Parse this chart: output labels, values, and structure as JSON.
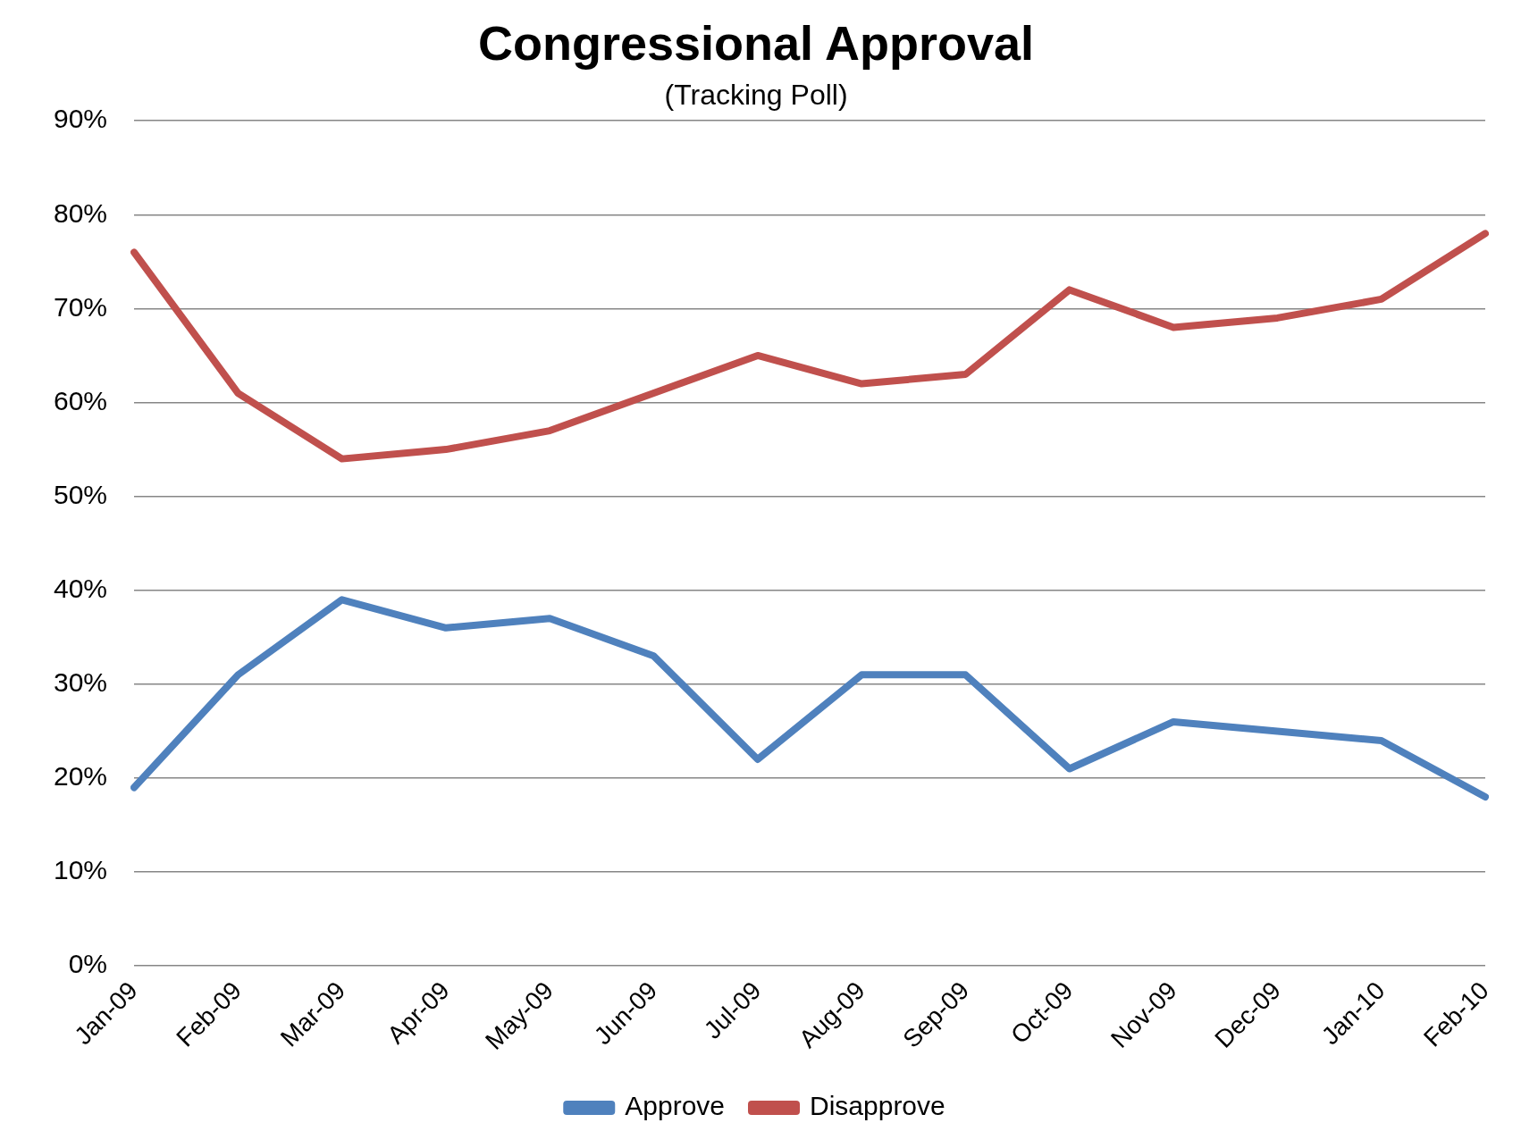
{
  "chart_data": {
    "type": "line",
    "title": "Congressional Approval",
    "subtitle": "(Tracking Poll)",
    "categories": [
      "Jan-09",
      "Feb-09",
      "Mar-09",
      "Apr-09",
      "May-09",
      "Jun-09",
      "Jul-09",
      "Aug-09",
      "Sep-09",
      "Oct-09",
      "Nov-09",
      "Dec-09",
      "Jan-10",
      "Feb-10"
    ],
    "series": [
      {
        "name": "Approve",
        "color": "#4f81bd",
        "values": [
          19,
          31,
          39,
          36,
          37,
          33,
          22,
          31,
          31,
          21,
          26,
          25,
          24,
          18
        ]
      },
      {
        "name": "Disapprove",
        "color": "#c0504d",
        "values": [
          76,
          61,
          54,
          55,
          57,
          61,
          65,
          62,
          63,
          72,
          68,
          69,
          71,
          78
        ]
      }
    ],
    "ylim": [
      0,
      90
    ],
    "yticks": [
      {
        "value": 0,
        "label": "0%"
      },
      {
        "value": 10,
        "label": "10%"
      },
      {
        "value": 20,
        "label": "20%"
      },
      {
        "value": 30,
        "label": "30%"
      },
      {
        "value": 40,
        "label": "40%"
      },
      {
        "value": 50,
        "label": "50%"
      },
      {
        "value": 60,
        "label": "60%"
      },
      {
        "value": 70,
        "label": "70%"
      },
      {
        "value": 80,
        "label": "80%"
      },
      {
        "value": 90,
        "label": "90%"
      }
    ],
    "grid": "y",
    "legend": "bottom",
    "marker": "none",
    "line_style": "solid"
  }
}
